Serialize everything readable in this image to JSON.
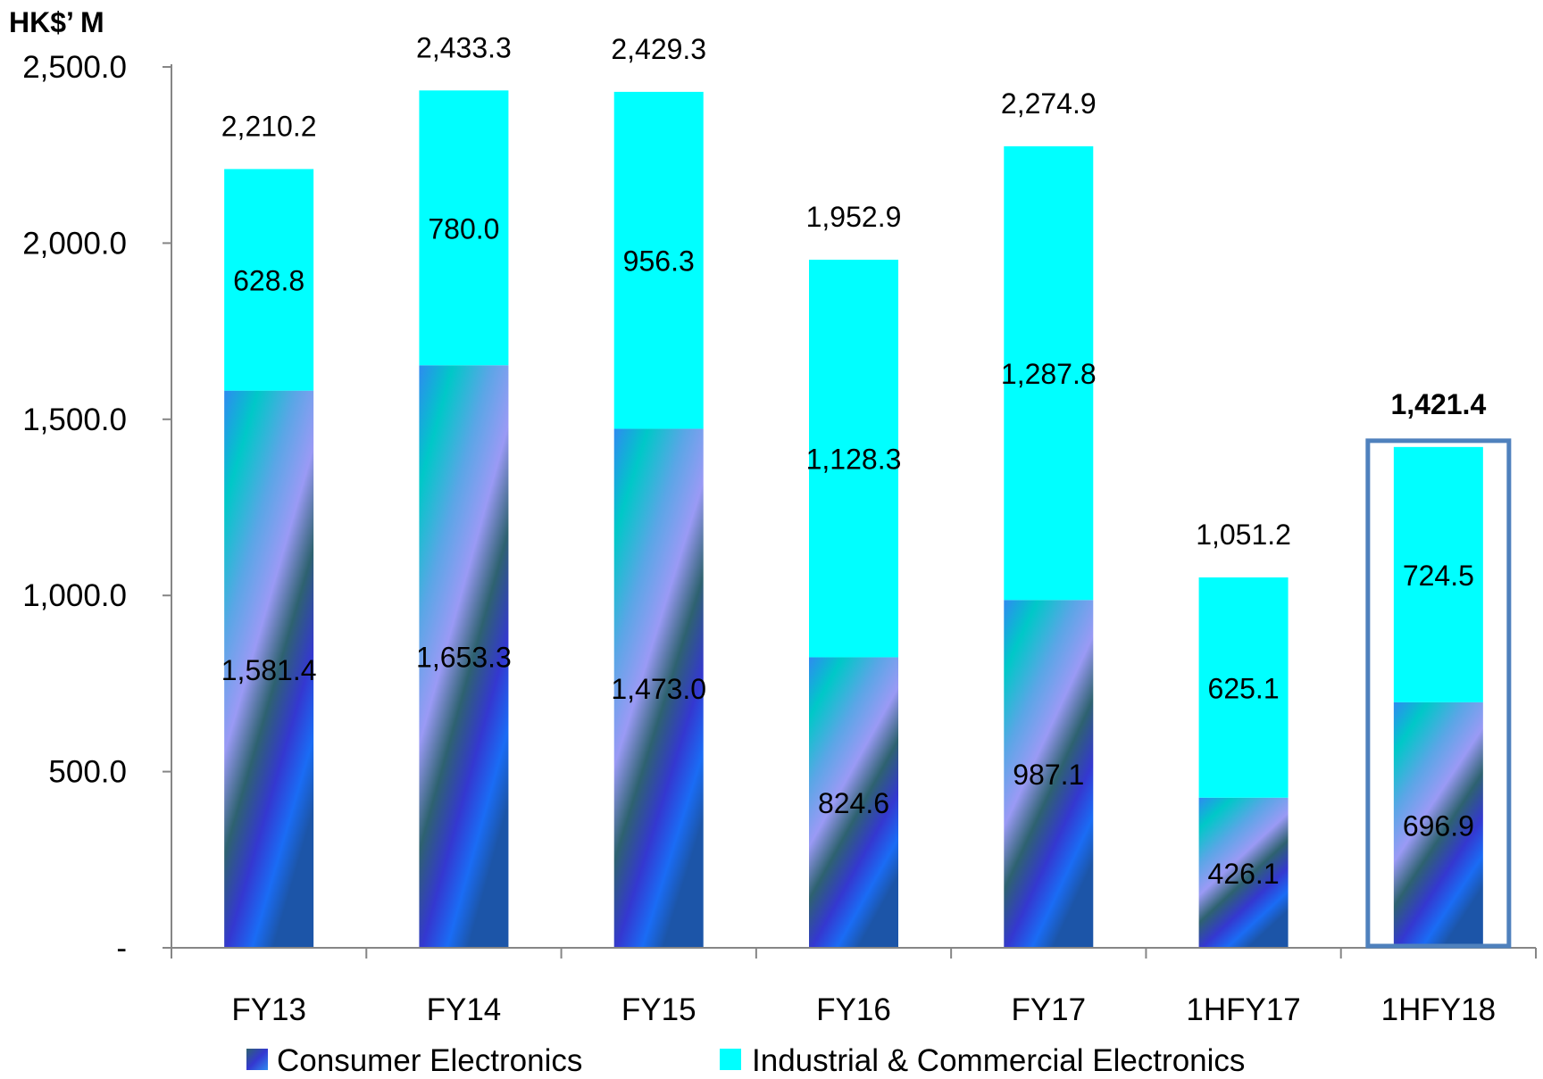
{
  "chart_data": {
    "type": "bar",
    "stacked": true,
    "unit_label": "HK$’ M",
    "categories": [
      "FY13",
      "FY14",
      "FY15",
      "FY16",
      "FY17",
      "1HFY17",
      "1HFY18"
    ],
    "series": [
      {
        "name": "Consumer Electronics",
        "values": [
          1581.4,
          1653.3,
          1473.0,
          824.6,
          987.1,
          426.1,
          696.9
        ],
        "labels": [
          "1,581.4",
          "1,653.3",
          "1,473.0",
          "824.6",
          "987.1",
          "426.1",
          "696.9"
        ],
        "color": "#1E6FE8",
        "fill": "gradient"
      },
      {
        "name": "Industrial & Commercial Electronics",
        "values": [
          628.8,
          780.0,
          956.3,
          1128.3,
          1287.8,
          625.1,
          724.5
        ],
        "labels": [
          "628.8",
          "780.0",
          "956.3",
          "1,128.3",
          "1,287.8",
          "625.1",
          "724.5"
        ],
        "color": "#00FFFF"
      }
    ],
    "totals": [
      2210.2,
      2433.3,
      2429.3,
      1952.9,
      2274.9,
      1051.2,
      1421.4
    ],
    "total_labels": [
      "2,210.2",
      "2,433.3",
      "2,429.3",
      "1,952.9",
      "2,274.9",
      "1,051.2",
      "1,421.4"
    ],
    "highlight_category": "1HFY18",
    "highlight_color": "#4F81BD",
    "ylim": [
      0,
      2500
    ],
    "yticks": [
      0,
      500,
      1000,
      1500,
      2000,
      2500
    ],
    "ytick_labels": [
      "-",
      "500.0",
      "1,000.0",
      "1,500.0",
      "2,000.0",
      "2,500.0"
    ],
    "grid": false,
    "legend_position": "bottom"
  }
}
